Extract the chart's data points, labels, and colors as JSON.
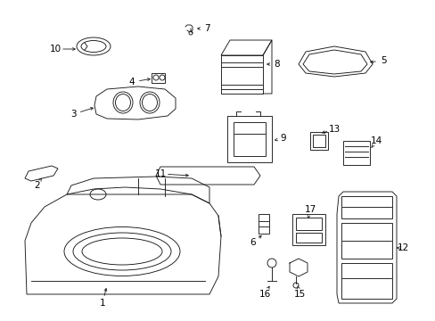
{
  "background_color": "#ffffff",
  "line_color": "#1a1a1a",
  "text_color": "#000000",
  "fig_width": 4.89,
  "fig_height": 3.6,
  "dpi": 100,
  "font_size": 7.5,
  "lw": 0.65
}
